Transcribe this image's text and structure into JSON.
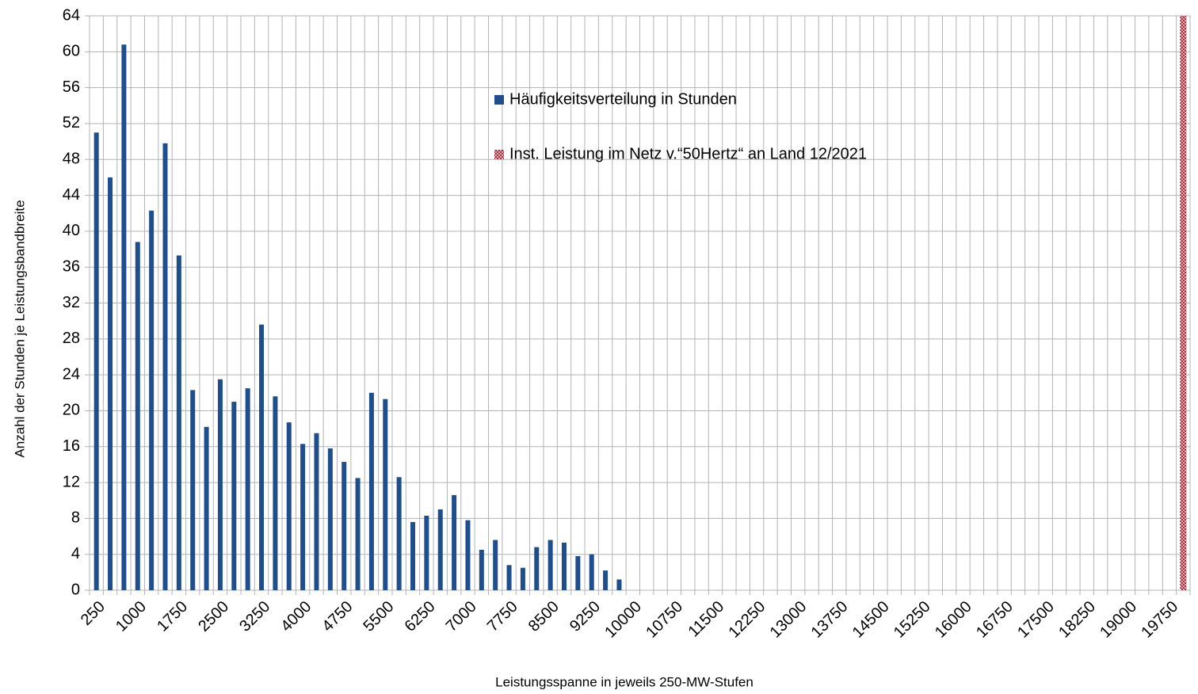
{
  "chart_data": {
    "type": "bar",
    "x_label": "Leistungsspanne in jeweils 250-MW-Stufen",
    "y_label": "Anzahl der Stunden je Leistungsbandbreite",
    "categories": [
      "250",
      null,
      null,
      "1000",
      null,
      null,
      "1750",
      null,
      null,
      "2500",
      null,
      null,
      "3250",
      null,
      null,
      "4000",
      null,
      null,
      "4750",
      null,
      null,
      "5500",
      null,
      null,
      "6250",
      null,
      null,
      "7000",
      null,
      null,
      "7750",
      null,
      null,
      "8500",
      null,
      null,
      "9250",
      null,
      null,
      "10000",
      null,
      null,
      "10750",
      null,
      null,
      "11500",
      null,
      null,
      "12250",
      null,
      null,
      "13000",
      null,
      null,
      "13750",
      null,
      null,
      "14500",
      null,
      null,
      "15250",
      null,
      null,
      "16000",
      null,
      null,
      "16750",
      null,
      null,
      "17500",
      null,
      null,
      "18250",
      null,
      null,
      "19000",
      null,
      null,
      "19750",
      null
    ],
    "series": [
      {
        "name": "Häufigkeitsverteilung in Stunden",
        "color": "#1f4e8c",
        "values": [
          51,
          46,
          60.8,
          38.8,
          42.3,
          49.8,
          37.3,
          22.3,
          18.2,
          23.5,
          21,
          22.5,
          29.6,
          21.6,
          18.7,
          16.3,
          17.5,
          15.8,
          14.3,
          12.5,
          22,
          21.3,
          12.6,
          7.6,
          8.3,
          9,
          10.6,
          7.8,
          4.5,
          5.6,
          2.8,
          2.5,
          4.8,
          5.6,
          5.3,
          3.8,
          4,
          2.2,
          1.2,
          null,
          null,
          null,
          null,
          null,
          null,
          null,
          null,
          null,
          null,
          null,
          null,
          null,
          null,
          null,
          null,
          null,
          null,
          null,
          null,
          null,
          null,
          null,
          null,
          null,
          null,
          null,
          null,
          null,
          null,
          null,
          null,
          null,
          null,
          null,
          null,
          null,
          null,
          null,
          null,
          null
        ]
      },
      {
        "name": "Inst. Leistung im Netz v.“50Hertz“ an Land 12/2021",
        "color": "#a52a3a",
        "pattern": "hatch",
        "values": [
          null,
          null,
          null,
          null,
          null,
          null,
          null,
          null,
          null,
          null,
          null,
          null,
          null,
          null,
          null,
          null,
          null,
          null,
          null,
          null,
          null,
          null,
          null,
          null,
          null,
          null,
          null,
          null,
          null,
          null,
          null,
          null,
          null,
          null,
          null,
          null,
          null,
          null,
          null,
          null,
          null,
          null,
          null,
          null,
          null,
          null,
          null,
          null,
          null,
          null,
          null,
          null,
          null,
          null,
          null,
          null,
          null,
          null,
          null,
          null,
          null,
          null,
          null,
          null,
          null,
          null,
          null,
          null,
          null,
          null,
          null,
          null,
          null,
          null,
          null,
          null,
          null,
          null,
          null,
          64
        ]
      }
    ],
    "ylim": [
      0,
      64
    ],
    "yticks": [
      0,
      4,
      8,
      12,
      16,
      20,
      24,
      28,
      32,
      36,
      40,
      44,
      48,
      52,
      56,
      60,
      64
    ],
    "grid": true
  }
}
